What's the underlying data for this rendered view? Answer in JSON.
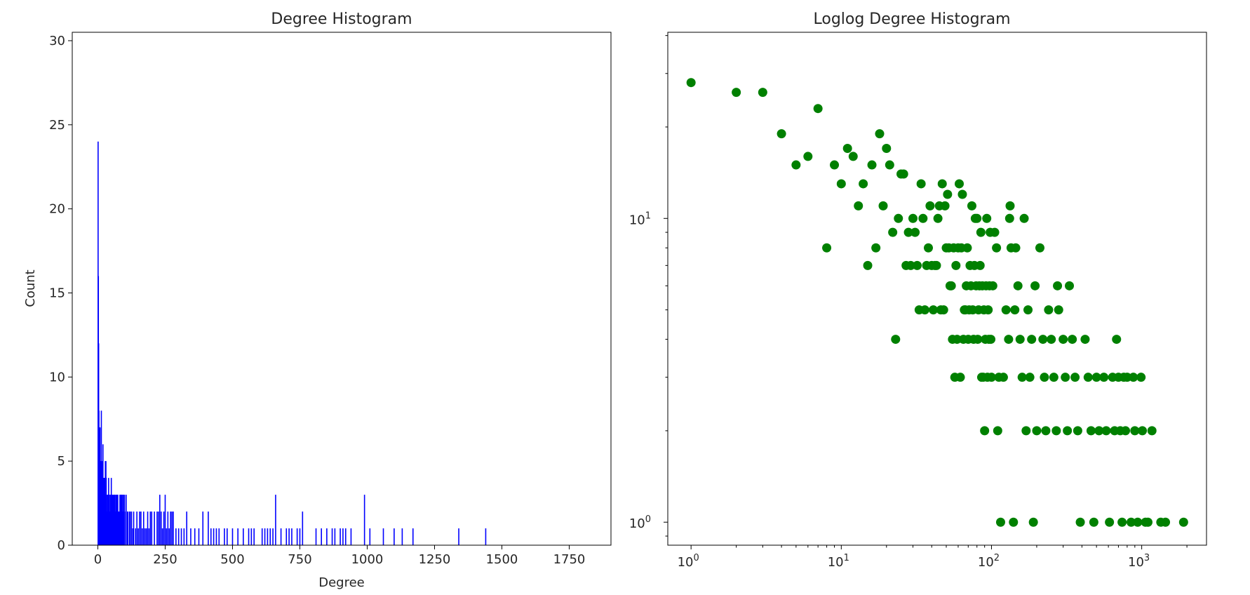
{
  "chart_data": [
    {
      "type": "bar",
      "title": "Degree Histogram",
      "xlabel": "Degree",
      "ylabel": "Count",
      "xlim": [
        -95,
        1905
      ],
      "ylim": [
        0,
        30.5
      ],
      "x_ticks": [
        0,
        250,
        500,
        750,
        1000,
        1250,
        1500,
        1750
      ],
      "x_tick_labels": [
        "0",
        "250",
        "500",
        "750",
        "1000",
        "1250",
        "1500",
        "1750"
      ],
      "y_ticks": [
        0,
        5,
        10,
        15,
        20,
        25,
        30
      ],
      "y_tick_labels": [
        "0",
        "5",
        "10",
        "15",
        "20",
        "25",
        "30"
      ],
      "bar_color": "#0000ff",
      "grid": false,
      "x": [
        1,
        2,
        3,
        4,
        5,
        6,
        7,
        8,
        9,
        10,
        11,
        12,
        13,
        14,
        15,
        16,
        17,
        18,
        19,
        20,
        21,
        22,
        23,
        24,
        25,
        26,
        27,
        28,
        29,
        30,
        31,
        32,
        33,
        34,
        35,
        36,
        37,
        38,
        39,
        40,
        41,
        42,
        43,
        44,
        45,
        46,
        47,
        48,
        49,
        50,
        51,
        52,
        53,
        54,
        55,
        56,
        57,
        58,
        59,
        60,
        61,
        62,
        63,
        64,
        65,
        66,
        67,
        68,
        69,
        70,
        71,
        72,
        73,
        74,
        75,
        76,
        77,
        78,
        79,
        80,
        81,
        82,
        83,
        84,
        85,
        86,
        87,
        88,
        89,
        90,
        91,
        92,
        93,
        94,
        95,
        96,
        97,
        98,
        99,
        100,
        105,
        110,
        112,
        118,
        120,
        125,
        130,
        133,
        140,
        145,
        150,
        155,
        160,
        165,
        170,
        175,
        180,
        185,
        190,
        195,
        200,
        210,
        220,
        225,
        230,
        235,
        240,
        245,
        250,
        255,
        260,
        265,
        270,
        275,
        280,
        290,
        300,
        310,
        320,
        330,
        345,
        360,
        375,
        390,
        410,
        420,
        430,
        440,
        450,
        470,
        480,
        500,
        520,
        540,
        560,
        570,
        580,
        610,
        620,
        630,
        640,
        650,
        660,
        680,
        700,
        710,
        720,
        740,
        750,
        760,
        810,
        830,
        850,
        870,
        880,
        900,
        910,
        920,
        940,
        990,
        1010,
        1060,
        1100,
        1130,
        1170,
        1340,
        1440
      ],
      "values": [
        24,
        16,
        12,
        8,
        6,
        7,
        7,
        7,
        4,
        5,
        5,
        3,
        8,
        3,
        3,
        5,
        3,
        3,
        6,
        3,
        4,
        4,
        3,
        4,
        4,
        2,
        3,
        5,
        2,
        5,
        4,
        2,
        3,
        2,
        1,
        2,
        3,
        3,
        3,
        4,
        3,
        3,
        3,
        2,
        1,
        2,
        3,
        2,
        2,
        4,
        3,
        3,
        2,
        3,
        2,
        2,
        1,
        3,
        2,
        3,
        3,
        3,
        2,
        3,
        2,
        1,
        2,
        3,
        2,
        3,
        2,
        3,
        1,
        3,
        2,
        2,
        2,
        2,
        2,
        1,
        1,
        3,
        1,
        2,
        3,
        3,
        1,
        2,
        3,
        3,
        1,
        2,
        1,
        3,
        3,
        1,
        2,
        1,
        3,
        2,
        3,
        2,
        2,
        2,
        2,
        2,
        1,
        2,
        1,
        2,
        1,
        2,
        2,
        1,
        2,
        1,
        1,
        2,
        1,
        2,
        2,
        2,
        2,
        2,
        3,
        2,
        1,
        2,
        3,
        1,
        2,
        1,
        2,
        2,
        2,
        1,
        1,
        1,
        1,
        2,
        1,
        1,
        1,
        2,
        2,
        1,
        1,
        1,
        1,
        1,
        1,
        1,
        1,
        1,
        1,
        1,
        1,
        1,
        1,
        1,
        1,
        1,
        3,
        1,
        1,
        1,
        1,
        1,
        1,
        2,
        1,
        1,
        1,
        1,
        1,
        1,
        1,
        1,
        1,
        3,
        1,
        1,
        1,
        1,
        1,
        1,
        1
      ]
    },
    {
      "type": "scatter",
      "title": "Loglog Degree Histogram",
      "xlabel": "",
      "ylabel": "",
      "xscale": "log",
      "yscale": "log",
      "xlim": [
        0.7,
        2700
      ],
      "ylim": [
        0.84,
        41
      ],
      "x_ticks": [
        1,
        10,
        100,
        1000
      ],
      "x_tick_labels": [
        [
          "10",
          "0"
        ],
        [
          "10",
          "1"
        ],
        [
          "10",
          "2"
        ],
        [
          "10",
          "3"
        ]
      ],
      "y_ticks": [
        1,
        10
      ],
      "y_tick_labels": [
        [
          "10",
          "0"
        ],
        [
          "10",
          "1"
        ]
      ],
      "marker_color": "#008000",
      "grid": false,
      "points": [
        [
          1,
          28
        ],
        [
          2,
          26
        ],
        [
          3,
          26
        ],
        [
          4,
          19
        ],
        [
          5,
          15
        ],
        [
          6,
          16
        ],
        [
          7,
          23
        ],
        [
          8,
          8
        ],
        [
          9,
          15
        ],
        [
          10,
          13
        ],
        [
          11,
          17
        ],
        [
          12,
          16
        ],
        [
          13,
          11
        ],
        [
          14,
          13
        ],
        [
          15,
          7
        ],
        [
          16,
          15
        ],
        [
          17,
          8
        ],
        [
          18,
          19
        ],
        [
          19,
          11
        ],
        [
          20,
          17
        ],
        [
          21,
          15
        ],
        [
          22,
          9
        ],
        [
          23,
          4
        ],
        [
          24,
          10
        ],
        [
          25,
          14
        ],
        [
          26,
          14
        ],
        [
          27,
          7
        ],
        [
          28,
          9
        ],
        [
          29,
          7
        ],
        [
          30,
          10
        ],
        [
          31,
          9
        ],
        [
          32,
          7
        ],
        [
          33,
          5
        ],
        [
          34,
          13
        ],
        [
          35,
          10
        ],
        [
          36,
          5
        ],
        [
          37,
          7
        ],
        [
          38,
          8
        ],
        [
          39,
          11
        ],
        [
          40,
          7
        ],
        [
          41,
          5
        ],
        [
          42,
          7
        ],
        [
          43,
          7
        ],
        [
          44,
          10
        ],
        [
          45,
          11
        ],
        [
          46,
          5
        ],
        [
          47,
          13
        ],
        [
          48,
          5
        ],
        [
          49,
          11
        ],
        [
          50,
          8
        ],
        [
          51,
          12
        ],
        [
          52,
          8
        ],
        [
          53,
          6
        ],
        [
          54,
          6
        ],
        [
          55,
          4
        ],
        [
          56,
          8
        ],
        [
          57,
          3
        ],
        [
          58,
          7
        ],
        [
          59,
          4
        ],
        [
          60,
          8
        ],
        [
          61,
          13
        ],
        [
          62,
          3
        ],
        [
          63,
          8
        ],
        [
          64,
          12
        ],
        [
          65,
          4
        ],
        [
          66,
          5
        ],
        [
          67,
          5
        ],
        [
          68,
          6
        ],
        [
          69,
          8
        ],
        [
          70,
          4
        ],
        [
          71,
          5
        ],
        [
          72,
          7
        ],
        [
          73,
          6
        ],
        [
          74,
          11
        ],
        [
          75,
          5
        ],
        [
          76,
          4
        ],
        [
          77,
          7
        ],
        [
          78,
          10
        ],
        [
          79,
          6
        ],
        [
          80,
          10
        ],
        [
          81,
          4
        ],
        [
          82,
          5
        ],
        [
          83,
          6
        ],
        [
          84,
          7
        ],
        [
          85,
          9
        ],
        [
          86,
          3
        ],
        [
          87,
          6
        ],
        [
          88,
          3
        ],
        [
          89,
          5
        ],
        [
          90,
          2
        ],
        [
          91,
          4
        ],
        [
          92,
          6
        ],
        [
          93,
          10
        ],
        [
          94,
          3
        ],
        [
          95,
          5
        ],
        [
          96,
          4
        ],
        [
          97,
          6
        ],
        [
          98,
          9
        ],
        [
          99,
          4
        ],
        [
          100,
          3
        ],
        [
          102,
          6
        ],
        [
          105,
          9
        ],
        [
          108,
          8
        ],
        [
          110,
          2
        ],
        [
          112,
          3
        ],
        [
          115,
          1
        ],
        [
          120,
          3
        ],
        [
          125,
          5
        ],
        [
          130,
          4
        ],
        [
          132,
          10
        ],
        [
          133,
          11
        ],
        [
          135,
          8
        ],
        [
          140,
          1
        ],
        [
          143,
          5
        ],
        [
          145,
          8
        ],
        [
          150,
          6
        ],
        [
          155,
          4
        ],
        [
          160,
          3
        ],
        [
          165,
          10
        ],
        [
          170,
          2
        ],
        [
          175,
          5
        ],
        [
          180,
          3
        ],
        [
          185,
          4
        ],
        [
          190,
          1
        ],
        [
          195,
          6
        ],
        [
          200,
          2
        ],
        [
          210,
          8
        ],
        [
          220,
          4
        ],
        [
          225,
          3
        ],
        [
          230,
          2
        ],
        [
          240,
          5
        ],
        [
          250,
          4
        ],
        [
          260,
          3
        ],
        [
          270,
          2
        ],
        [
          275,
          6
        ],
        [
          280,
          5
        ],
        [
          300,
          4
        ],
        [
          310,
          3
        ],
        [
          320,
          2
        ],
        [
          330,
          6
        ],
        [
          345,
          4
        ],
        [
          360,
          3
        ],
        [
          375,
          2
        ],
        [
          390,
          1
        ],
        [
          420,
          4
        ],
        [
          440,
          3
        ],
        [
          460,
          2
        ],
        [
          480,
          1
        ],
        [
          500,
          3
        ],
        [
          520,
          2
        ],
        [
          560,
          3
        ],
        [
          580,
          2
        ],
        [
          610,
          1
        ],
        [
          640,
          3
        ],
        [
          660,
          2
        ],
        [
          680,
          4
        ],
        [
          700,
          3
        ],
        [
          720,
          2
        ],
        [
          740,
          1
        ],
        [
          760,
          3
        ],
        [
          780,
          2
        ],
        [
          800,
          3
        ],
        [
          850,
          1
        ],
        [
          880,
          3
        ],
        [
          900,
          2
        ],
        [
          940,
          1
        ],
        [
          990,
          3
        ],
        [
          1010,
          2
        ],
        [
          1060,
          1
        ],
        [
          1100,
          1
        ],
        [
          1170,
          2
        ],
        [
          1340,
          1
        ],
        [
          1440,
          1
        ],
        [
          1900,
          1
        ]
      ]
    }
  ]
}
